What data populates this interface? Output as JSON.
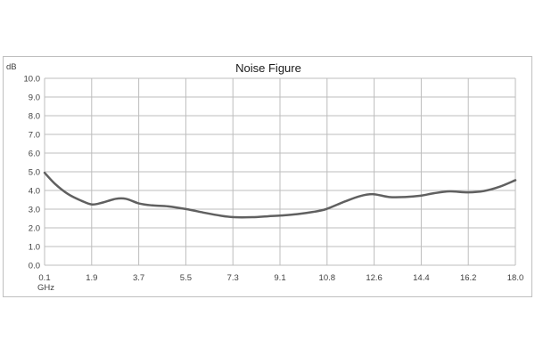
{
  "chart_data": {
    "type": "line",
    "title": "Noise Figure",
    "ylabel": "dB",
    "xlabel": "GHz",
    "ylim": [
      0,
      10
    ],
    "xlim": [
      0.1,
      18.0
    ],
    "y_ticks": [
      "0.0",
      "1.0",
      "2.0",
      "3.0",
      "4.0",
      "5.0",
      "6.0",
      "7.0",
      "8.0",
      "9.0",
      "10.0"
    ],
    "x_ticks": [
      "0.1",
      "1.9",
      "3.7",
      "5.5",
      "7.3",
      "9.1",
      "10.8",
      "12.6",
      "14.4",
      "16.2",
      "18.0"
    ],
    "grid": true,
    "line_color": "#606060",
    "series": [
      {
        "x": [
          0.1,
          0.5,
          1.0,
          1.5,
          1.9,
          2.3,
          2.8,
          3.2,
          3.7,
          4.2,
          4.8,
          5.5,
          6.2,
          6.8,
          7.3,
          8.0,
          8.6,
          9.1,
          9.7,
          10.3,
          10.8,
          11.5,
          12.1,
          12.6,
          13.2,
          13.8,
          14.4,
          14.9,
          15.5,
          16.2,
          16.8,
          17.4,
          18.0
        ],
        "values": [
          4.95,
          4.35,
          3.8,
          3.45,
          3.25,
          3.35,
          3.55,
          3.55,
          3.3,
          3.2,
          3.15,
          3.0,
          2.8,
          2.65,
          2.57,
          2.57,
          2.62,
          2.66,
          2.73,
          2.85,
          3.0,
          3.4,
          3.7,
          3.8,
          3.65,
          3.65,
          3.72,
          3.85,
          3.95,
          3.9,
          3.97,
          4.2,
          4.55
        ]
      }
    ]
  }
}
